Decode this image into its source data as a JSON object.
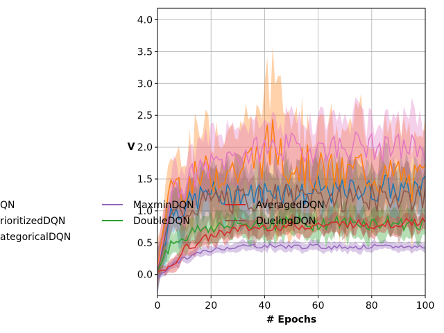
{
  "chart_data": {
    "type": "line",
    "xlabel": "# Epochs",
    "ylabel": "V",
    "xlim": [
      0,
      100
    ],
    "ylim": [
      -0.33,
      4.18
    ],
    "xticks": [
      0,
      20,
      40,
      60,
      80,
      100
    ],
    "yticks": [
      0.0,
      0.5,
      1.0,
      1.5,
      2.0,
      2.5,
      3.0,
      3.5,
      4.0
    ],
    "xtick_labels": [
      "0",
      "20",
      "40",
      "60",
      "80",
      "100"
    ],
    "ytick_labels": [
      "0.0",
      "0.5",
      "1.0",
      "1.5",
      "2.0",
      "2.5",
      "3.0",
      "3.5",
      "4.0"
    ],
    "grid": true,
    "legend_placement": "center-left, below axes top, partially outside figure",
    "legend_labels_visible": [
      "QN",
      "rioritizedDQN",
      "ategoricalDQN",
      "MaxminDQN",
      "DoubleDQN",
      "AveragedDQN",
      "DuelingDQN"
    ],
    "x": [
      0,
      5,
      10,
      15,
      20,
      25,
      30,
      35,
      40,
      45,
      50,
      55,
      60,
      65,
      70,
      75,
      80,
      85,
      90,
      95,
      100
    ],
    "series": [
      {
        "name": "DQN",
        "color": "#1f77b4",
        "values": [
          0.05,
          1.0,
          1.05,
          1.2,
          1.3,
          1.2,
          1.3,
          1.25,
          1.3,
          1.35,
          1.3,
          1.25,
          1.35,
          1.3,
          1.3,
          1.35,
          1.3,
          1.4,
          1.3,
          1.35,
          1.4
        ],
        "band": [
          0.4,
          0.4,
          0.4,
          0.45,
          0.45,
          0.45,
          0.45,
          0.45,
          0.45,
          0.45,
          0.45,
          0.45,
          0.45,
          0.45,
          0.45,
          0.45,
          0.45,
          0.45,
          0.45,
          0.45,
          0.45
        ]
      },
      {
        "name": "PrioritizedDQN",
        "color": "#ff7f0e",
        "values": [
          0.1,
          1.5,
          1.4,
          1.5,
          1.6,
          1.7,
          1.6,
          1.8,
          1.9,
          2.1,
          1.8,
          1.7,
          1.6,
          1.6,
          1.5,
          1.7,
          1.6,
          1.5,
          1.6,
          1.4,
          1.5
        ],
        "band": [
          0.4,
          0.5,
          0.6,
          0.7,
          0.8,
          0.8,
          0.7,
          0.8,
          0.9,
          1.3,
          0.9,
          0.8,
          0.8,
          0.7,
          0.8,
          0.8,
          0.8,
          0.7,
          0.7,
          0.7,
          0.7
        ]
      },
      {
        "name": "CategoricalDQN",
        "color": "#e377c2",
        "values": [
          0.05,
          1.3,
          1.4,
          1.6,
          1.7,
          1.8,
          1.9,
          1.9,
          2.0,
          2.0,
          2.0,
          1.95,
          2.0,
          2.0,
          2.0,
          2.05,
          2.0,
          1.95,
          2.0,
          2.0,
          2.0
        ],
        "band": [
          0.4,
          0.4,
          0.5,
          0.5,
          0.5,
          0.5,
          0.5,
          0.5,
          0.5,
          0.5,
          0.5,
          0.5,
          0.5,
          0.5,
          0.5,
          0.5,
          0.5,
          0.5,
          0.5,
          0.5,
          0.5
        ]
      },
      {
        "name": "MaxminDQN",
        "color": "#9467bd",
        "values": [
          -0.05,
          0.15,
          0.25,
          0.33,
          0.38,
          0.42,
          0.44,
          0.45,
          0.45,
          0.45,
          0.44,
          0.44,
          0.44,
          0.43,
          0.44,
          0.43,
          0.44,
          0.43,
          0.44,
          0.43,
          0.45
        ],
        "band": [
          0.05,
          0.08,
          0.08,
          0.08,
          0.08,
          0.08,
          0.08,
          0.08,
          0.08,
          0.08,
          0.08,
          0.08,
          0.08,
          0.08,
          0.08,
          0.08,
          0.08,
          0.08,
          0.08,
          0.08,
          0.08
        ]
      },
      {
        "name": "DoubleDQN",
        "color": "#2ca02c",
        "values": [
          0.05,
          0.5,
          0.6,
          0.7,
          0.75,
          0.75,
          0.78,
          0.8,
          0.8,
          0.8,
          0.82,
          0.8,
          0.8,
          0.82,
          0.8,
          0.82,
          0.8,
          0.82,
          0.8,
          0.8,
          0.82
        ],
        "band": [
          0.1,
          0.2,
          0.25,
          0.25,
          0.25,
          0.25,
          0.25,
          0.25,
          0.25,
          0.25,
          0.25,
          0.25,
          0.25,
          0.25,
          0.25,
          0.25,
          0.25,
          0.25,
          0.25,
          0.25,
          0.25
        ]
      },
      {
        "name": "AveragedDQN",
        "color": "#d62728",
        "values": [
          0.05,
          0.1,
          0.4,
          0.5,
          0.6,
          0.68,
          0.72,
          0.72,
          0.75,
          0.75,
          0.77,
          0.76,
          0.78,
          0.78,
          0.8,
          0.8,
          0.78,
          0.8,
          0.8,
          0.82,
          0.85
        ],
        "band": [
          0.05,
          0.1,
          0.15,
          0.15,
          0.15,
          0.15,
          0.15,
          0.15,
          0.15,
          0.15,
          0.15,
          0.15,
          0.15,
          0.15,
          0.15,
          0.15,
          0.15,
          0.15,
          0.15,
          0.15,
          0.15
        ]
      },
      {
        "name": "DuelingDQN",
        "color": "#8c564b",
        "values": [
          0.05,
          0.9,
          1.0,
          1.1,
          1.15,
          1.2,
          1.15,
          1.2,
          1.2,
          1.25,
          1.2,
          1.2,
          1.25,
          1.2,
          1.2,
          1.25,
          1.2,
          1.2,
          1.25,
          1.2,
          1.2
        ],
        "band": [
          0.3,
          0.4,
          0.45,
          0.5,
          0.5,
          0.5,
          0.5,
          0.5,
          0.5,
          0.5,
          0.5,
          0.5,
          0.5,
          0.5,
          0.5,
          0.5,
          0.5,
          0.5,
          0.5,
          0.5,
          0.5
        ]
      }
    ]
  }
}
